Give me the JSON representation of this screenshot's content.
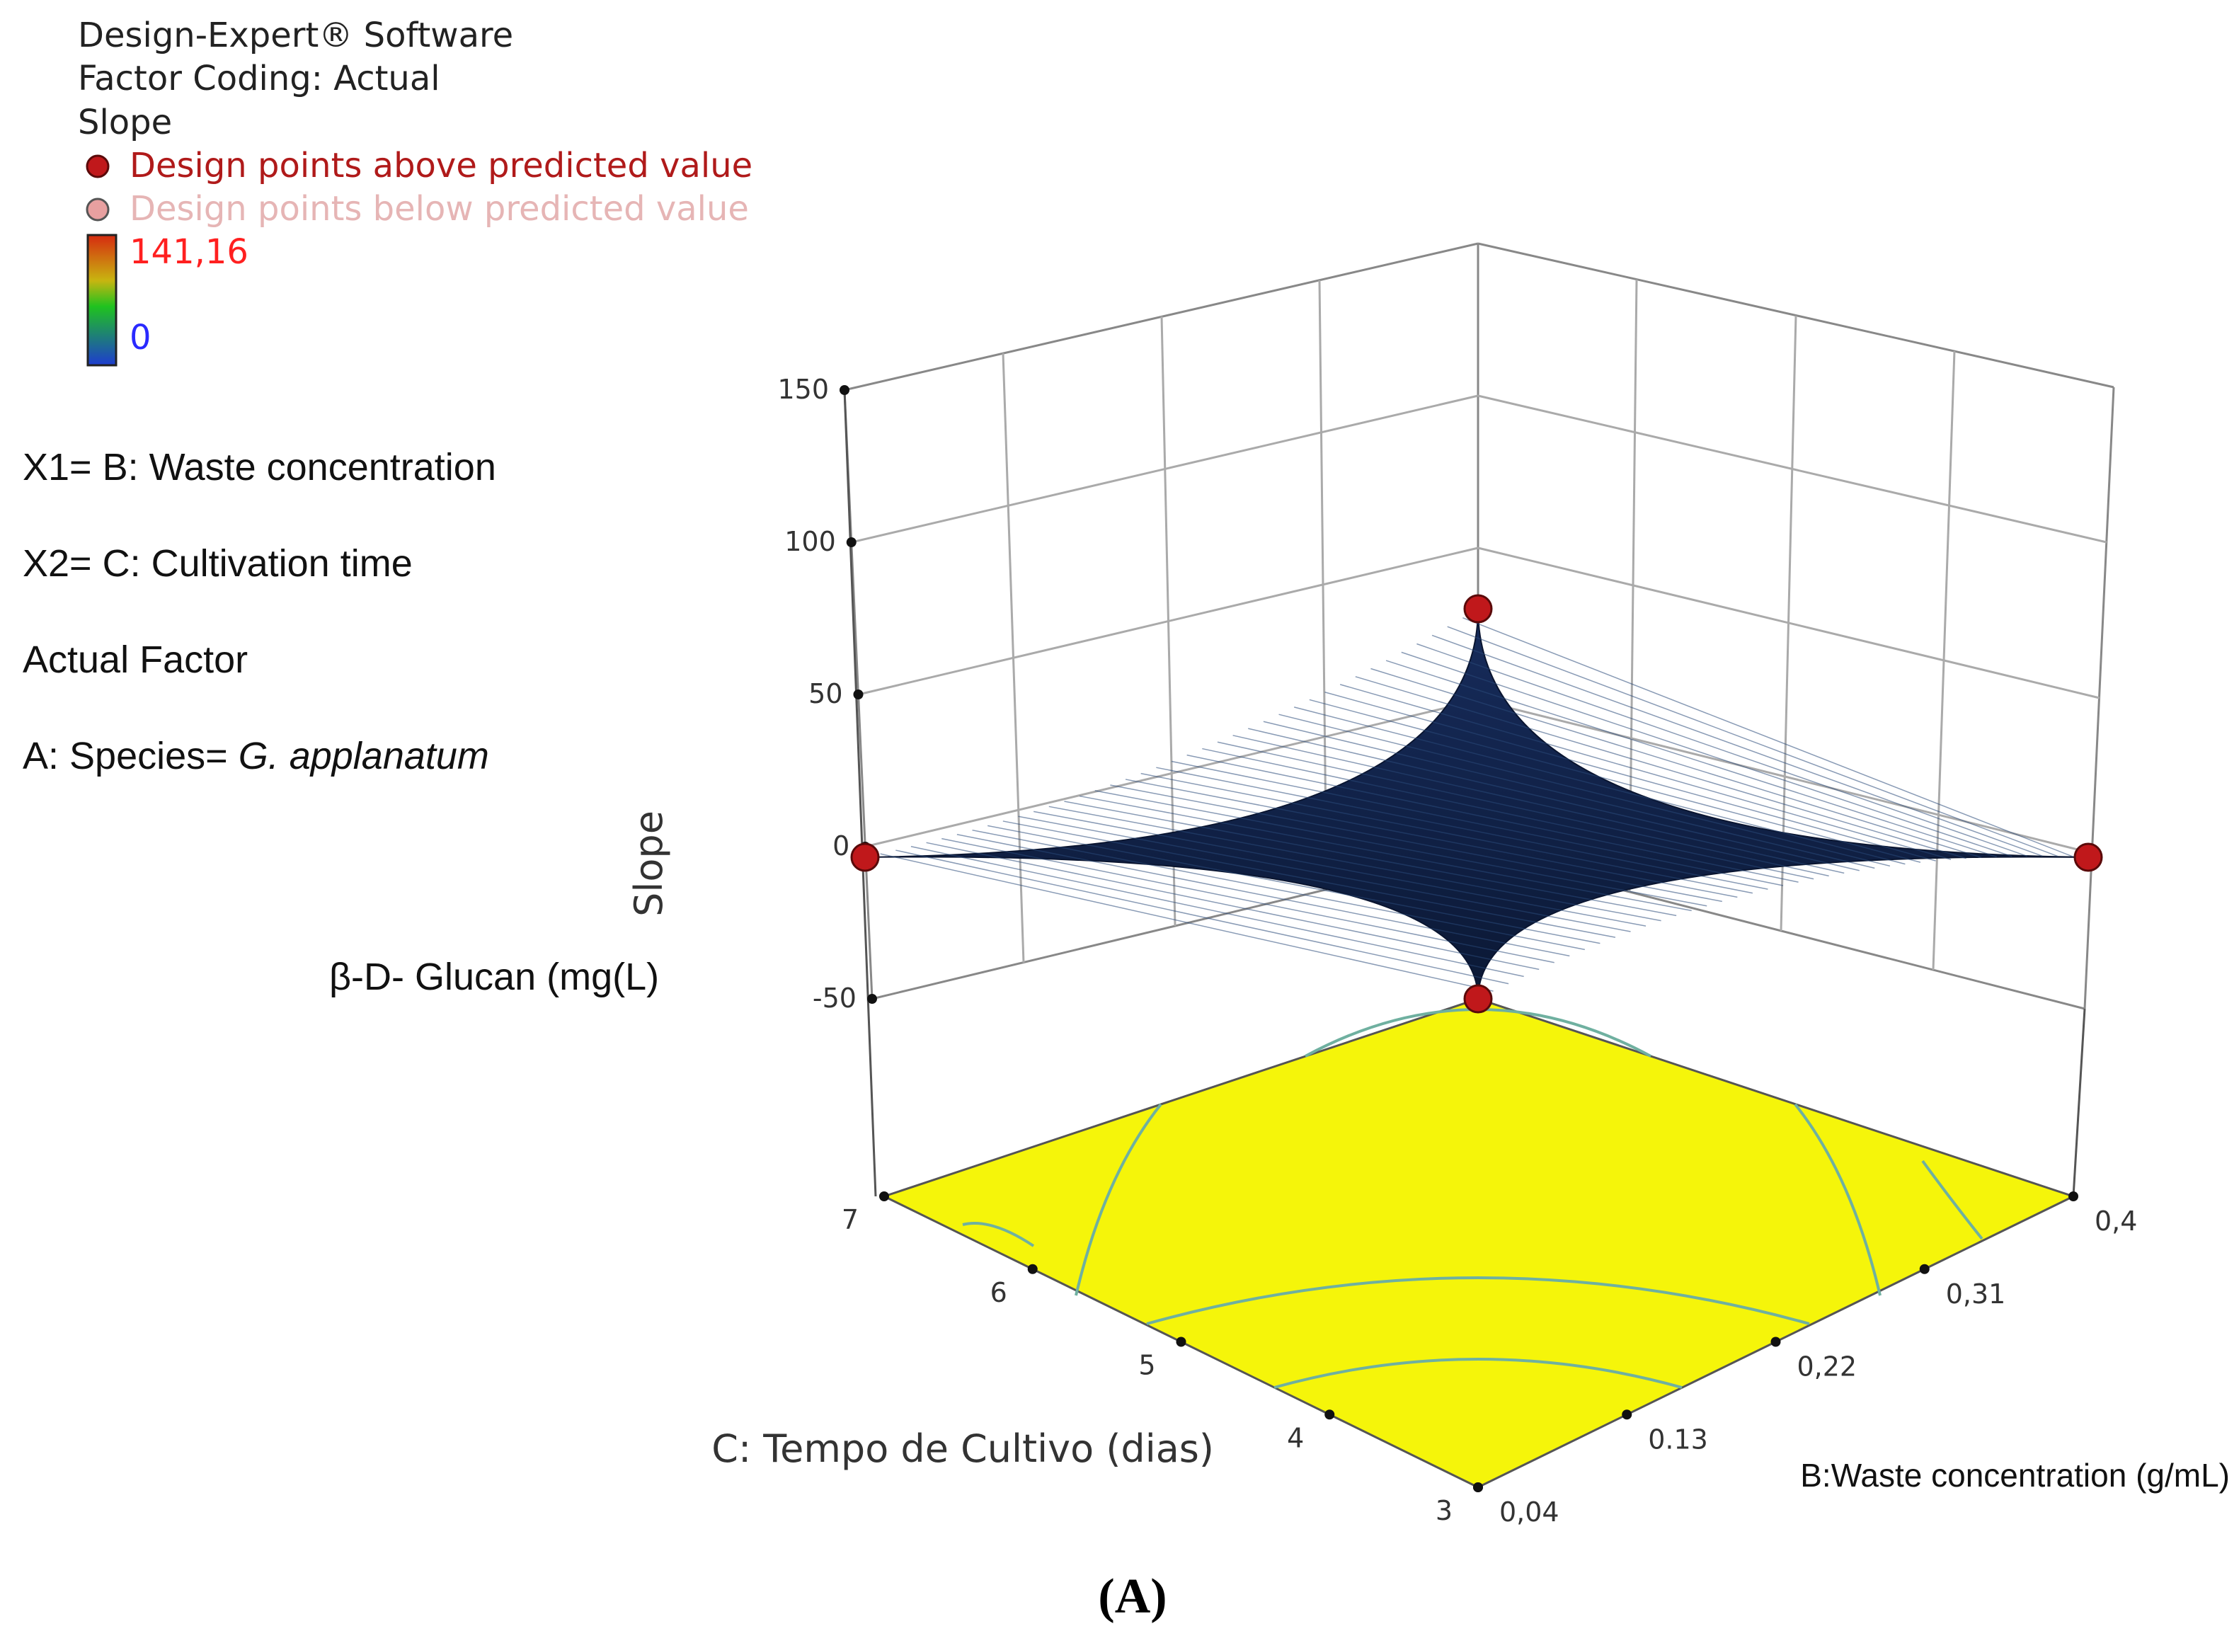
{
  "legend": {
    "software": "Design-Expert® Software",
    "coding": "Factor Coding: Actual",
    "response": "Slope",
    "above_label": "Design points above predicted value",
    "below_label": "Design points below predicted value",
    "scale_max": "141,16",
    "scale_min": "0",
    "colors": {
      "above": "#c0181b",
      "above_text": "#b01a1a",
      "below": "#e8a0a0",
      "below_text": "#e6b5b5",
      "max_text": "#ff2020",
      "min_text": "#2a2aff"
    }
  },
  "info": {
    "x1": "X1= B: Waste concentration",
    "x2": "X2= C: Cultivation time",
    "actual_factor": "Actual Factor",
    "species_prefix": "A: Species= ",
    "species_name": "G. applanatum",
    "response_label": "β-D- Glucan (mg(L)"
  },
  "caption": "(A)",
  "chart_data": {
    "type": "surface",
    "z_axis": {
      "label": "Slope",
      "ticks": [
        "150",
        "100",
        "50",
        "0",
        "-50"
      ],
      "range": [
        -50,
        150
      ]
    },
    "x_axis": {
      "label": "B:Waste concentration (g/mL)",
      "ticks": [
        "0,04",
        "0.13",
        "0,22",
        "0,31",
        "0,4"
      ],
      "range": [
        0.04,
        0.4
      ]
    },
    "y_axis": {
      "label": "C: Tempo de Cultivo  (dias)",
      "ticks": [
        "3",
        "4",
        "5",
        "6",
        "7"
      ],
      "range": [
        3,
        7
      ]
    },
    "surface_color": "#0e1f46",
    "contour_floor_color": "#f5f50a",
    "contour_line_color": "#6fb0a0",
    "design_points": [
      {
        "B": 0.04,
        "C": 3,
        "slope": 0,
        "position": "above"
      },
      {
        "B": 0.4,
        "C": 3,
        "slope": 0,
        "position": "above"
      },
      {
        "B": 0.04,
        "C": 7,
        "slope": 0,
        "position": "above"
      },
      {
        "B": 0.4,
        "C": 7,
        "slope": 0,
        "position": "above"
      }
    ]
  }
}
